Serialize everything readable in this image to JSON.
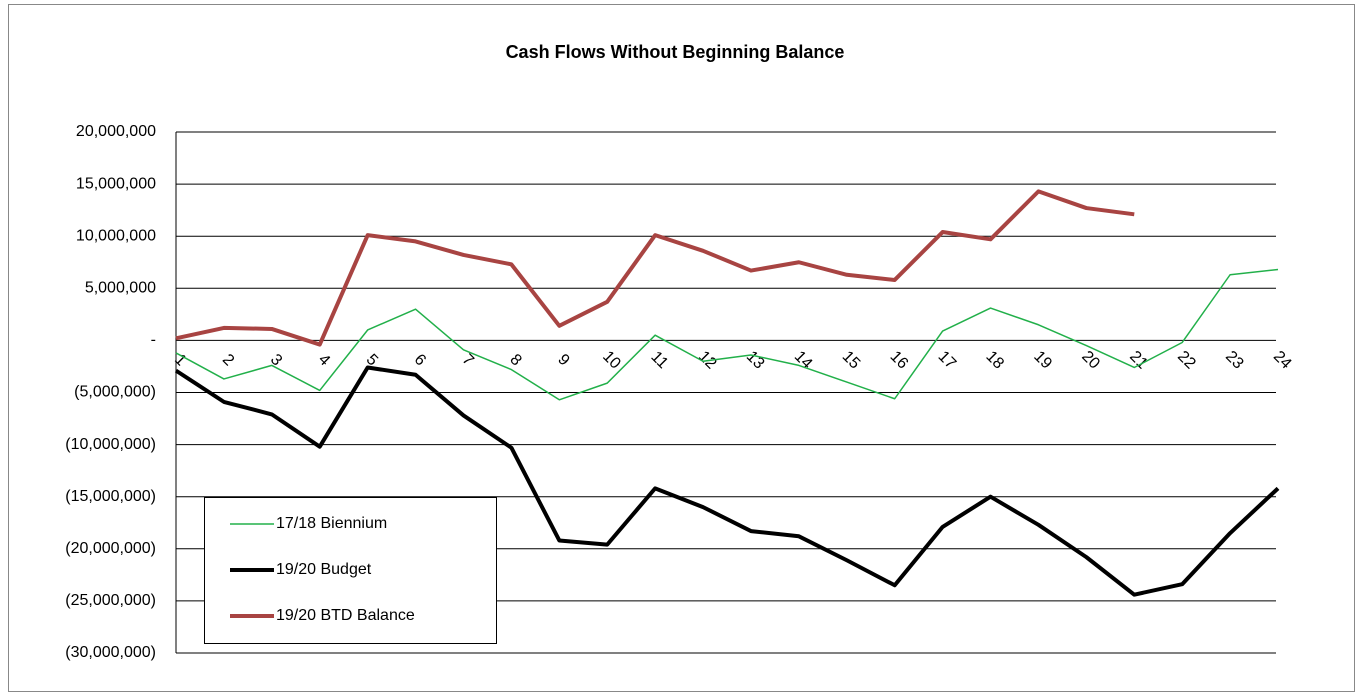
{
  "chart_data": {
    "type": "line",
    "title": "Cash Flows Without Beginning Balance",
    "categories": [
      "1",
      "2",
      "3",
      "4",
      "5",
      "6",
      "7",
      "8",
      "9",
      "10",
      "11",
      "12",
      "13",
      "14",
      "15",
      "16",
      "17",
      "18",
      "19",
      "20",
      "21",
      "22",
      "23",
      "24"
    ],
    "series": [
      {
        "name": "17/18 Biennium",
        "color": "#22b04a",
        "width": 1.5,
        "values": [
          -1200000,
          -3700000,
          -2400000,
          -4800000,
          1000000,
          3000000,
          -900000,
          -2800000,
          -5700000,
          -4100000,
          500000,
          -2000000,
          -1400000,
          -2400000,
          -4000000,
          -5600000,
          900000,
          3100000,
          1500000,
          -500000,
          -2600000,
          -200000,
          6300000,
          6800000
        ]
      },
      {
        "name": "19/20 Budget",
        "color": "#000000",
        "width": 4,
        "values": [
          -2900000,
          -5900000,
          -7100000,
          -10200000,
          -2600000,
          -3300000,
          -7200000,
          -10300000,
          -19200000,
          -19600000,
          -14200000,
          -16000000,
          -18300000,
          -18800000,
          -21100000,
          -23500000,
          -17900000,
          -15000000,
          -17700000,
          -20800000,
          -24400000,
          -23400000,
          -18500000,
          -14200000
        ]
      },
      {
        "name": "19/20 BTD Balance",
        "color": "#a84442",
        "width": 4,
        "values": [
          200000,
          1200000,
          1100000,
          -400000,
          10100000,
          9500000,
          8200000,
          7300000,
          1400000,
          3700000,
          10100000,
          8600000,
          6700000,
          7500000,
          6300000,
          5800000,
          10400000,
          9700000,
          14300000,
          12700000,
          12100000,
          null,
          null,
          null
        ]
      }
    ],
    "ylim": [
      -30000000,
      20000000
    ],
    "yticks": [
      {
        "value": -30000000,
        "label": "(30,000,000)"
      },
      {
        "value": -25000000,
        "label": "(25,000,000)"
      },
      {
        "value": -20000000,
        "label": "(20,000,000)"
      },
      {
        "value": -15000000,
        "label": "(15,000,000)"
      },
      {
        "value": -10000000,
        "label": "(10,000,000)"
      },
      {
        "value": -5000000,
        "label": "(5,000,000)"
      },
      {
        "value": 0,
        "label": "-"
      },
      {
        "value": 5000000,
        "label": "5,000,000"
      },
      {
        "value": 10000000,
        "label": "10,000,000"
      },
      {
        "value": 15000000,
        "label": "15,000,000"
      },
      {
        "value": 20000000,
        "label": "20,000,000"
      }
    ],
    "grid": true,
    "legend": "lower left"
  }
}
